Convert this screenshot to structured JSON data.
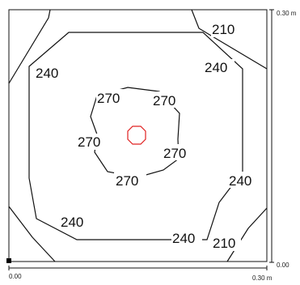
{
  "axes": {
    "x_origin": "0.00",
    "x_max": "0.30 m",
    "y_origin": "0.00",
    "y_max": "0.30 m"
  },
  "contours": [
    {
      "level": "270"
    },
    {
      "level": "240"
    },
    {
      "level": "210"
    }
  ],
  "labels": {
    "l270_a": "270",
    "l270_b": "270",
    "l270_c": "270",
    "l270_d": "270",
    "l270_e": "270",
    "l240_a": "240",
    "l240_b": "240",
    "l240_c": "240",
    "l240_d": "240",
    "l240_e": "240",
    "l210_a": "210",
    "l210_b": "210"
  },
  "colors": {
    "contour": "#111111",
    "max_marker": "#e02020",
    "frame": "#111111"
  }
}
